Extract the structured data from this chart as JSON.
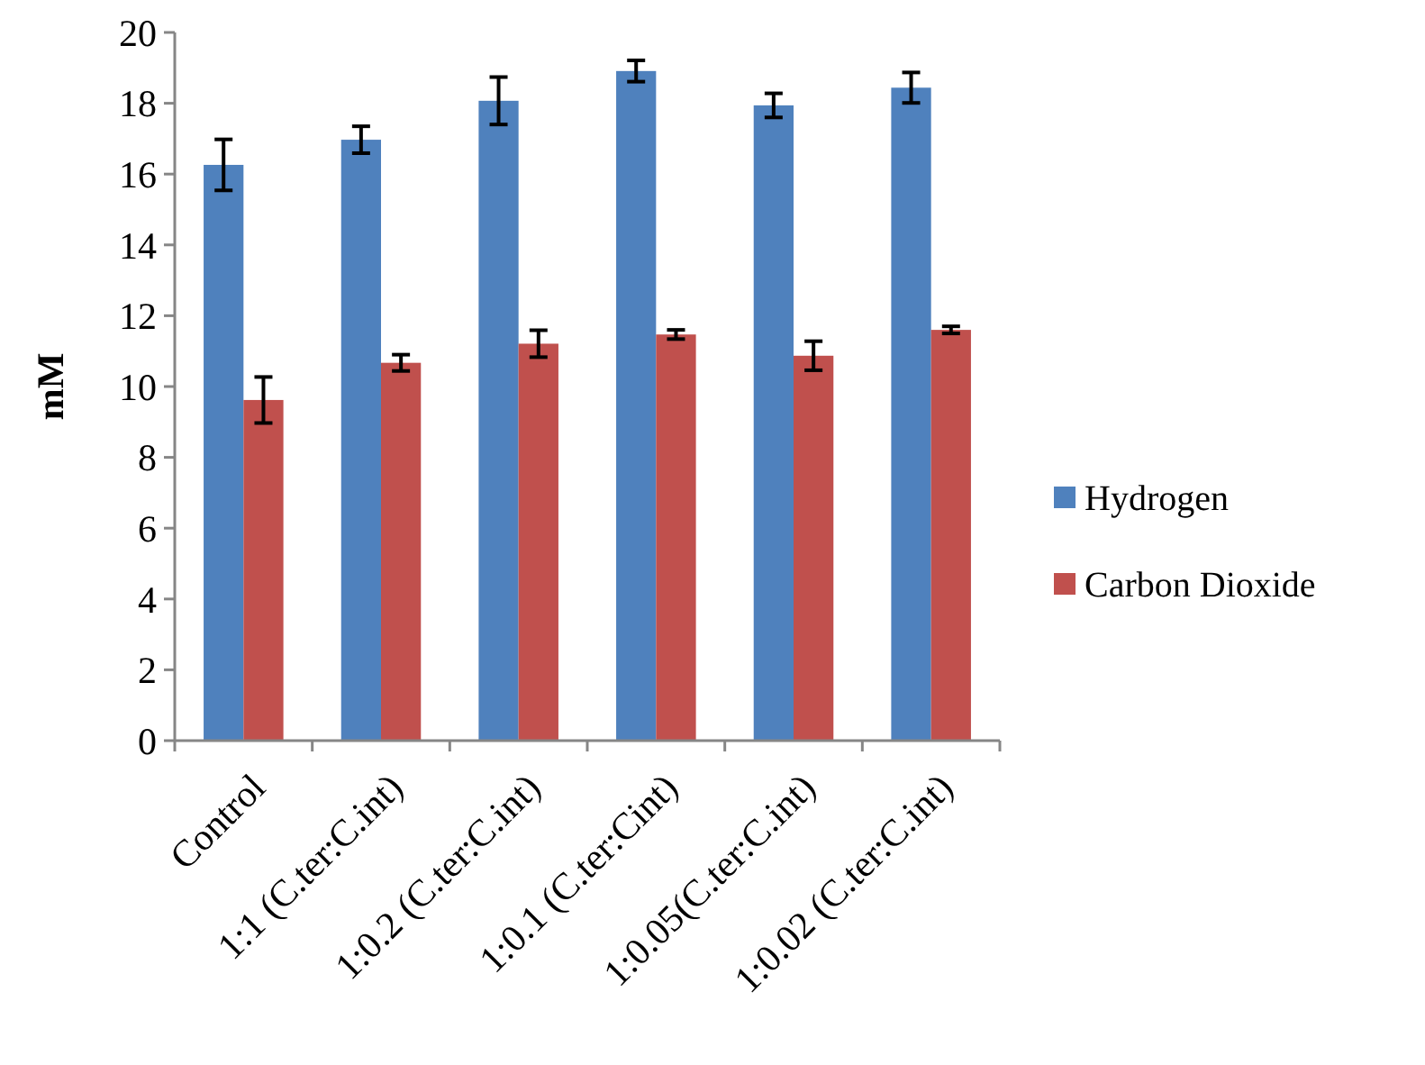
{
  "chart_data": {
    "type": "bar",
    "ylabel": "mM",
    "categories": [
      "Control",
      "1:1 (C.ter:C.int)",
      "1:0.2 (C.ter:C.int)",
      "1:0.1 (C.ter:Cint)",
      "1:0.05(C.ter:C.int)",
      "1:0.02 (C.ter:C.int)"
    ],
    "series": [
      {
        "name": "Hydrogen",
        "color": "#4f81bd",
        "values": [
          16.26,
          16.97,
          18.07,
          18.91,
          17.94,
          18.44
        ],
        "errors": [
          0.72,
          0.38,
          0.67,
          0.3,
          0.34,
          0.43
        ]
      },
      {
        "name": "Carbon Dioxide",
        "color": "#c0504d",
        "values": [
          9.62,
          10.67,
          11.21,
          11.47,
          10.87,
          11.6
        ],
        "errors": [
          0.65,
          0.23,
          0.38,
          0.13,
          0.41,
          0.1
        ]
      }
    ],
    "ylim": [
      0,
      20
    ],
    "yticks": [
      0,
      2,
      4,
      6,
      8,
      10,
      12,
      14,
      16,
      18,
      20
    ],
    "grid": false,
    "legend": "right"
  }
}
